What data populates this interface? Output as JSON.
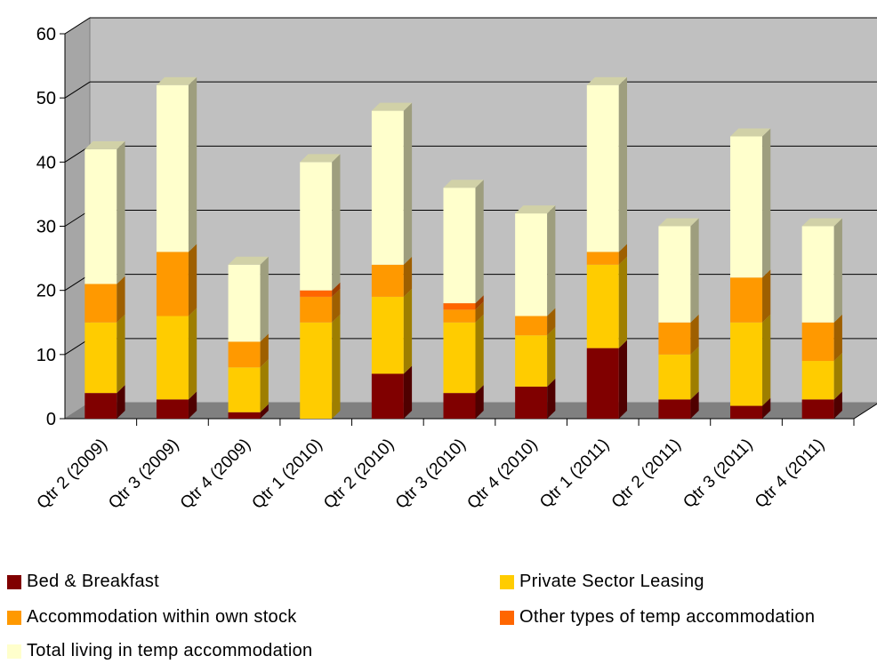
{
  "chart_data": {
    "type": "bar",
    "stacked": true,
    "three_d": true,
    "title": "",
    "xlabel": "",
    "ylabel": "",
    "ylim": [
      0,
      60
    ],
    "yticks": [
      0,
      10,
      20,
      30,
      40,
      50,
      60
    ],
    "grid": true,
    "legend_position": "bottom",
    "categories": [
      "Qtr 2 (2009)",
      "Qtr 3 (2009)",
      "Qtr 4 (2009)",
      "Qtr 1 (2010)",
      "Qtr 2 (2010)",
      "Qtr 3 (2010)",
      "Qtr 4 (2010)",
      "Qtr 1 (2011)",
      "Qtr 2 (2011)",
      "Qtr 3 (2011)",
      "Qtr 4 (2011)"
    ],
    "series": [
      {
        "name": "Bed & Breakfast",
        "color": "#800000",
        "values": [
          4,
          3,
          1,
          0,
          7,
          4,
          5,
          11,
          3,
          2,
          3
        ]
      },
      {
        "name": "Private Sector Leasing",
        "color": "#ffcc00",
        "values": [
          11,
          13,
          7,
          15,
          12,
          11,
          8,
          13,
          7,
          13,
          6
        ]
      },
      {
        "name": "Accommodation within own stock",
        "color": "#ff9900",
        "values": [
          6,
          10,
          4,
          4,
          5,
          2,
          3,
          2,
          5,
          7,
          6
        ]
      },
      {
        "name": "Other types of temp accommodation",
        "color": "#ff6600",
        "values": [
          0,
          0,
          0,
          1,
          0,
          1,
          0,
          0,
          0,
          0,
          0
        ]
      },
      {
        "name": "Total living in temp accommodation",
        "color": "#ffffcc",
        "values": [
          21,
          26,
          12,
          20,
          24,
          18,
          16,
          26,
          15,
          22,
          15
        ]
      }
    ],
    "colors": {
      "wall": "#c0c0c0",
      "floor": "#808080",
      "side_wall": "#a6a6a6",
      "gridline": "#000000"
    }
  }
}
